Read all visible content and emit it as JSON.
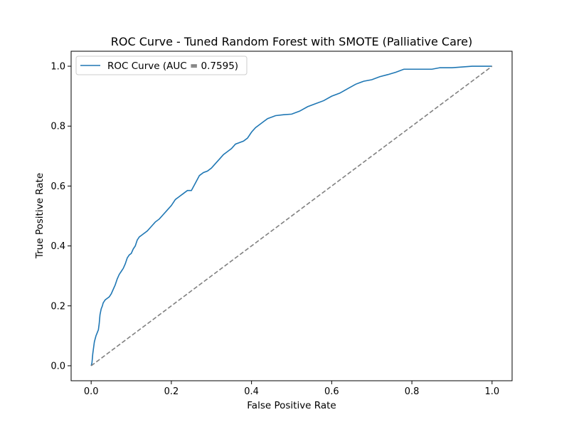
{
  "chart_data": {
    "type": "line",
    "title": "ROC Curve - Tuned Random Forest with SMOTE (Palliative Care)",
    "xlabel": "False Positive Rate",
    "ylabel": "True Positive Rate",
    "xlim": [
      -0.05,
      1.05
    ],
    "ylim": [
      -0.05,
      1.05
    ],
    "xticks": [
      "0.0",
      "0.2",
      "0.4",
      "0.6",
      "0.8",
      "1.0"
    ],
    "yticks": [
      "0.0",
      "0.2",
      "0.4",
      "0.6",
      "0.8",
      "1.0"
    ],
    "grid": false,
    "legend_position": "upper-left",
    "series": [
      {
        "name": "ROC Curve (AUC = 0.7595)",
        "color": "#1f77b4",
        "style": "solid",
        "x": [
          0.0,
          0.002,
          0.004,
          0.006,
          0.008,
          0.01,
          0.012,
          0.015,
          0.018,
          0.02,
          0.022,
          0.025,
          0.028,
          0.03,
          0.035,
          0.04,
          0.045,
          0.05,
          0.055,
          0.06,
          0.065,
          0.07,
          0.075,
          0.08,
          0.085,
          0.09,
          0.095,
          0.1,
          0.105,
          0.11,
          0.115,
          0.12,
          0.125,
          0.13,
          0.14,
          0.15,
          0.16,
          0.17,
          0.18,
          0.19,
          0.2,
          0.21,
          0.22,
          0.23,
          0.24,
          0.25,
          0.26,
          0.27,
          0.28,
          0.29,
          0.3,
          0.31,
          0.32,
          0.33,
          0.34,
          0.35,
          0.36,
          0.37,
          0.38,
          0.39,
          0.4,
          0.41,
          0.42,
          0.43,
          0.44,
          0.45,
          0.46,
          0.48,
          0.5,
          0.52,
          0.54,
          0.56,
          0.58,
          0.6,
          0.62,
          0.64,
          0.66,
          0.68,
          0.7,
          0.72,
          0.74,
          0.76,
          0.78,
          0.8,
          0.85,
          0.87,
          0.9,
          0.95,
          1.0
        ],
        "y": [
          0.0,
          0.01,
          0.04,
          0.06,
          0.08,
          0.09,
          0.1,
          0.11,
          0.12,
          0.14,
          0.17,
          0.19,
          0.2,
          0.21,
          0.22,
          0.225,
          0.23,
          0.24,
          0.255,
          0.27,
          0.29,
          0.305,
          0.315,
          0.325,
          0.34,
          0.36,
          0.37,
          0.375,
          0.39,
          0.4,
          0.42,
          0.43,
          0.435,
          0.44,
          0.45,
          0.465,
          0.48,
          0.49,
          0.505,
          0.52,
          0.535,
          0.555,
          0.565,
          0.575,
          0.585,
          0.585,
          0.61,
          0.635,
          0.645,
          0.65,
          0.66,
          0.675,
          0.69,
          0.705,
          0.715,
          0.725,
          0.74,
          0.745,
          0.75,
          0.76,
          0.78,
          0.795,
          0.805,
          0.815,
          0.825,
          0.83,
          0.835,
          0.838,
          0.84,
          0.85,
          0.865,
          0.875,
          0.885,
          0.9,
          0.91,
          0.925,
          0.94,
          0.95,
          0.955,
          0.965,
          0.972,
          0.98,
          0.99,
          0.99,
          0.99,
          0.995,
          0.995,
          1.0,
          1.0
        ]
      },
      {
        "name": "",
        "color": "#808080",
        "style": "dashed",
        "x": [
          0.0,
          1.0
        ],
        "y": [
          0.0,
          1.0
        ]
      }
    ]
  }
}
